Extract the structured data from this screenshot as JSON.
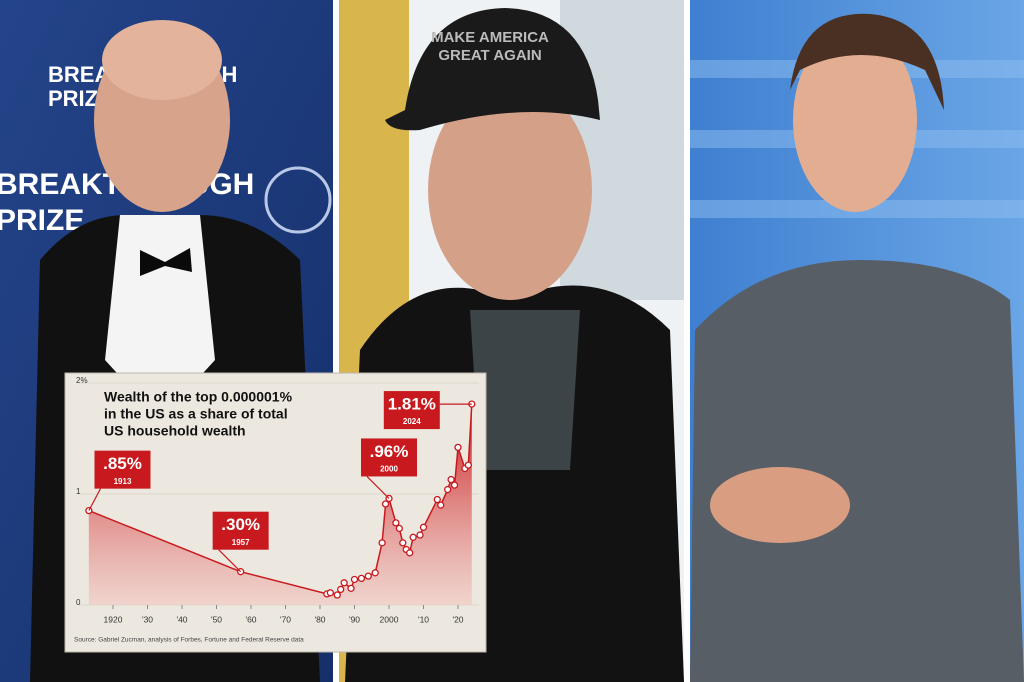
{
  "photo_texts": {
    "backdrop": [
      "BREAKTHROUGH",
      "PRIZE"
    ],
    "cap": [
      "MAKE AMERICA",
      "GREAT AGAIN"
    ]
  },
  "chart_data": {
    "type": "line",
    "title": [
      "Wealth of the top 0.000001%",
      "in the US as a share of total",
      "US household wealth"
    ],
    "x": [
      1913,
      1957,
      1982,
      1983,
      1985,
      1986,
      1987,
      1989,
      1990,
      1992,
      1994,
      1996,
      1998,
      1999,
      2000,
      2002,
      2003,
      2004,
      2005,
      2006,
      2007,
      2009,
      2010,
      2014,
      2015,
      2017,
      2018,
      2019,
      2020,
      2022,
      2023,
      2024
    ],
    "values": [
      0.85,
      0.3,
      0.1,
      0.11,
      0.09,
      0.14,
      0.2,
      0.15,
      0.23,
      0.24,
      0.26,
      0.29,
      0.56,
      0.91,
      0.96,
      0.74,
      0.69,
      0.56,
      0.5,
      0.47,
      0.61,
      0.63,
      0.7,
      0.95,
      0.9,
      1.04,
      1.13,
      1.08,
      1.42,
      1.23,
      1.26,
      1.81
    ],
    "value_labels": [
      ".85%",
      ".30%",
      null,
      null,
      null,
      null,
      null,
      null,
      null,
      null,
      null,
      null,
      null,
      null,
      ".96%",
      null,
      null,
      null,
      null,
      null,
      null,
      null,
      null,
      null,
      null,
      null,
      null,
      null,
      null,
      null,
      null,
      "1.81%"
    ],
    "color": "#c8191e",
    "xlim": [
      1910,
      2026
    ],
    "xticks": [
      1920,
      {
        "value": 1930,
        "label": "'30"
      },
      {
        "value": 1940,
        "label": "'40"
      },
      {
        "value": 1950,
        "label": "'50"
      },
      {
        "value": 1960,
        "label": "'60"
      },
      {
        "value": 1970,
        "label": "'70"
      },
      {
        "value": 1980,
        "label": "'80"
      },
      {
        "value": 1990,
        "label": "'90"
      },
      2000,
      {
        "value": 2010,
        "label": "'10"
      },
      {
        "value": 2020,
        "label": "'20"
      }
    ],
    "ylim": [
      0,
      2
    ],
    "yticks": [
      0,
      1,
      {
        "value": 2,
        "label": "2%"
      }
    ],
    "source": "Source: Gabriel Zucman, analysis of Forbes, Fortune and Federal Reserve data"
  }
}
